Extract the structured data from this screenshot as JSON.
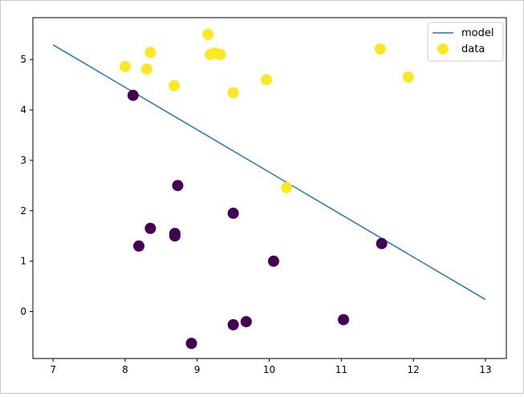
{
  "chart_data": {
    "type": "scatter",
    "title": "",
    "xlabel": "",
    "ylabel": "",
    "xlim": [
      6.72,
      13.29
    ],
    "ylim": [
      -0.93,
      5.83
    ],
    "xticks": [
      "7",
      "8",
      "9",
      "10",
      "11",
      "12",
      "13"
    ],
    "yticks": [
      "0",
      "1",
      "2",
      "3",
      "4",
      "5"
    ],
    "grid": false,
    "legend_position": "top-right",
    "series": [
      {
        "name": "model",
        "kind": "line",
        "color": "#1f77b4",
        "x": [
          7.0,
          13.0
        ],
        "y": [
          5.29,
          0.24
        ]
      },
      {
        "name": "data",
        "kind": "scatter",
        "legend_color": "#fde725",
        "points": [
          {
            "x": 8.0,
            "y": 4.86,
            "class": 1
          },
          {
            "x": 8.3,
            "y": 4.81,
            "class": 1
          },
          {
            "x": 8.35,
            "y": 5.14,
            "class": 1
          },
          {
            "x": 8.68,
            "y": 4.48,
            "class": 1
          },
          {
            "x": 9.15,
            "y": 5.5,
            "class": 1
          },
          {
            "x": 9.18,
            "y": 5.1,
            "class": 1
          },
          {
            "x": 9.25,
            "y": 5.13,
            "class": 1
          },
          {
            "x": 9.32,
            "y": 5.1,
            "class": 1
          },
          {
            "x": 9.5,
            "y": 4.34,
            "class": 1
          },
          {
            "x": 9.96,
            "y": 4.6,
            "class": 1
          },
          {
            "x": 10.24,
            "y": 2.46,
            "class": 1
          },
          {
            "x": 11.54,
            "y": 5.21,
            "class": 1
          },
          {
            "x": 11.93,
            "y": 4.65,
            "class": 1
          },
          {
            "x": 8.11,
            "y": 4.29,
            "class": 0
          },
          {
            "x": 8.73,
            "y": 2.5,
            "class": 0
          },
          {
            "x": 8.35,
            "y": 1.65,
            "class": 0
          },
          {
            "x": 8.19,
            "y": 1.3,
            "class": 0
          },
          {
            "x": 8.69,
            "y": 1.55,
            "class": 0
          },
          {
            "x": 8.69,
            "y": 1.5,
            "class": 0
          },
          {
            "x": 9.5,
            "y": 1.95,
            "class": 0
          },
          {
            "x": 10.06,
            "y": 1.0,
            "class": 0
          },
          {
            "x": 11.56,
            "y": 1.35,
            "class": 0
          },
          {
            "x": 9.5,
            "y": -0.26,
            "class": 0
          },
          {
            "x": 9.68,
            "y": -0.2,
            "class": 0
          },
          {
            "x": 11.03,
            "y": -0.16,
            "class": 0
          },
          {
            "x": 8.92,
            "y": -0.63,
            "class": 0
          }
        ]
      }
    ],
    "class_colors": {
      "0": "#440154",
      "1": "#fde725"
    }
  }
}
